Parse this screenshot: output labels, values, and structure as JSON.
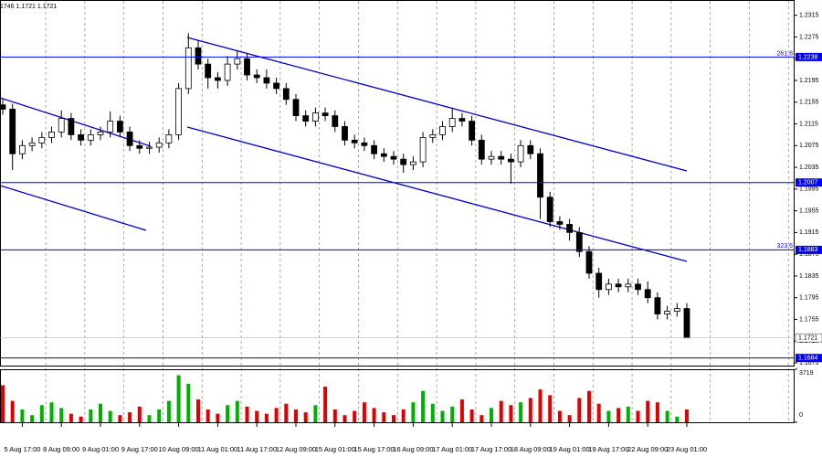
{
  "chart_data": {
    "type": "candlestick",
    "header": "1746 1.1721 1.1721",
    "categories": [
      null,
      null,
      "5 Aug 17:00",
      null,
      null,
      null,
      "8 Aug 09:00",
      null,
      null,
      null,
      "9 Aug 01:00",
      null,
      null,
      null,
      "9 Aug 17:00",
      null,
      null,
      null,
      "10 Aug 09:00",
      null,
      null,
      null,
      "11 Aug 01:00",
      null,
      null,
      null,
      "11 Aug 17:00",
      null,
      null,
      null,
      "12 Aug 09:00",
      null,
      null,
      null,
      "15 Aug 01:00",
      null,
      null,
      null,
      "15 Aug 17:00",
      null,
      null,
      null,
      "16 Aug 09:00",
      null,
      null,
      null,
      "17 Aug 01:00",
      null,
      null,
      null,
      "17 Aug 17:00",
      null,
      null,
      null,
      "18 Aug 09:00",
      null,
      null,
      null,
      "19 Aug 01:00",
      null,
      null,
      null,
      "19 Aug 17:00",
      null,
      null,
      null,
      "22 Aug 09:00",
      null,
      null,
      null,
      "23 Aug 01:00"
    ],
    "open": [
      1.215,
      1.2142,
      1.206,
      1.2075,
      1.208,
      1.209,
      1.21,
      1.2125,
      1.2095,
      1.2085,
      1.2095,
      1.21,
      1.212,
      1.21,
      1.2075,
      1.207,
      1.2072,
      1.208,
      1.2095,
      1.218,
      1.2255,
      1.2225,
      1.22,
      1.2195,
      1.2225,
      1.2235,
      1.2205,
      1.22,
      1.219,
      1.218,
      1.216,
      1.213,
      1.212,
      1.2135,
      1.213,
      1.211,
      1.2085,
      1.208,
      1.2075,
      1.206,
      1.2055,
      1.205,
      1.204,
      1.2045,
      1.209,
      1.2095,
      1.211,
      1.2125,
      1.212,
      1.2085,
      1.205,
      1.2055,
      1.205,
      1.2045,
      1.2075,
      1.206,
      1.198,
      1.1935,
      1.193,
      1.1915,
      1.188,
      1.184,
      1.181,
      1.182,
      1.1815,
      1.182,
      1.181,
      1.1795,
      1.1765,
      1.177,
      1.1775
    ],
    "high": [
      1.216,
      1.2152,
      1.2085,
      1.209,
      1.21,
      1.211,
      1.214,
      1.2135,
      1.2105,
      1.2105,
      1.211,
      1.2138,
      1.213,
      1.211,
      1.2085,
      1.2082,
      1.209,
      1.2105,
      1.219,
      1.2282,
      1.227,
      1.2235,
      1.221,
      1.224,
      1.225,
      1.2245,
      1.2215,
      1.2215,
      1.22,
      1.219,
      1.217,
      1.214,
      1.2145,
      1.2145,
      1.214,
      1.212,
      1.2095,
      1.209,
      1.2085,
      1.207,
      1.2065,
      1.206,
      1.2055,
      1.21,
      1.2105,
      1.212,
      1.2145,
      1.2135,
      1.213,
      1.2095,
      1.2065,
      1.2065,
      1.206,
      1.2085,
      1.2085,
      1.207,
      1.199,
      1.1945,
      1.194,
      1.1925,
      1.189,
      1.185,
      1.183,
      1.183,
      1.183,
      1.183,
      1.1825,
      1.1805,
      1.178,
      1.1785,
      1.1785
    ],
    "low": [
      1.2132,
      1.203,
      1.205,
      1.2065,
      1.207,
      1.208,
      1.209,
      1.2085,
      1.2075,
      1.2075,
      1.2085,
      1.209,
      1.209,
      1.2065,
      1.206,
      1.206,
      1.2062,
      1.207,
      1.2085,
      1.217,
      1.2215,
      1.218,
      1.218,
      1.2185,
      1.2215,
      1.2195,
      1.219,
      1.218,
      1.217,
      1.215,
      1.212,
      1.211,
      1.211,
      1.212,
      1.21,
      1.2075,
      1.207,
      1.2065,
      1.205,
      1.2045,
      1.204,
      1.2025,
      1.203,
      1.2035,
      1.208,
      1.2085,
      1.21,
      1.211,
      1.2075,
      1.204,
      1.204,
      1.204,
      1.2005,
      1.2035,
      1.205,
      1.194,
      1.1925,
      1.192,
      1.19,
      1.187,
      1.183,
      1.1795,
      1.18,
      1.1805,
      1.1805,
      1.18,
      1.1785,
      1.1755,
      1.1755,
      1.176,
      1.1721
    ],
    "close": [
      1.2142,
      1.206,
      1.2075,
      1.208,
      1.209,
      1.21,
      1.2125,
      1.2095,
      1.2085,
      1.2095,
      1.21,
      1.212,
      1.21,
      1.2075,
      1.207,
      1.2072,
      1.208,
      1.2095,
      1.218,
      1.2255,
      1.2225,
      1.22,
      1.2195,
      1.2225,
      1.2235,
      1.2205,
      1.22,
      1.219,
      1.218,
      1.216,
      1.213,
      1.212,
      1.2135,
      1.213,
      1.211,
      1.2085,
      1.208,
      1.2075,
      1.206,
      1.2055,
      1.205,
      1.204,
      1.2045,
      1.209,
      1.2095,
      1.211,
      1.2125,
      1.212,
      1.2085,
      1.205,
      1.2055,
      1.205,
      1.2045,
      1.2075,
      1.206,
      1.198,
      1.1935,
      1.193,
      1.1915,
      1.188,
      1.184,
      1.181,
      1.182,
      1.1815,
      1.182,
      1.181,
      1.1795,
      1.1765,
      1.177,
      1.1775,
      1.1721
    ],
    "ylim": [
      1.167,
      1.2343
    ],
    "yticks": [
      1.2315,
      1.2275,
      1.2235,
      1.2195,
      1.2155,
      1.2115,
      1.2075,
      1.2035,
      1.1995,
      1.1955,
      1.1915,
      1.1875,
      1.1835,
      1.1795,
      1.1755,
      1.1715,
      1.1675
    ],
    "levels": [
      {
        "value": 1.2238,
        "fibo": "261.8"
      },
      {
        "value": 1.2007
      },
      {
        "value": 1.1883,
        "fibo": "323.6"
      },
      {
        "value": 1.1684
      }
    ],
    "level_color": "#0000ff",
    "volume": {
      "values": [
        2600,
        1500,
        900,
        500,
        1200,
        1400,
        1000,
        600,
        400,
        900,
        1300,
        800,
        500,
        700,
        1100,
        500,
        900,
        1500,
        3300,
        2700,
        1600,
        900,
        600,
        1200,
        1500,
        1100,
        800,
        600,
        1000,
        1300,
        900,
        700,
        1200,
        2500,
        900,
        500,
        800,
        1400,
        1000,
        700,
        500,
        900,
        1400,
        2200,
        1300,
        800,
        1100,
        1600,
        900,
        500,
        1000,
        1500,
        1200,
        1400,
        1700,
        2300,
        1900,
        800,
        500,
        1700,
        2200,
        1300,
        800,
        1000,
        1100,
        800,
        1500,
        1400,
        800,
        400,
        900
      ],
      "ylim": [
        0,
        3719
      ],
      "yticks": [
        3719,
        0
      ],
      "up_color": "#00b000",
      "down_color": "#e00000"
    }
  }
}
